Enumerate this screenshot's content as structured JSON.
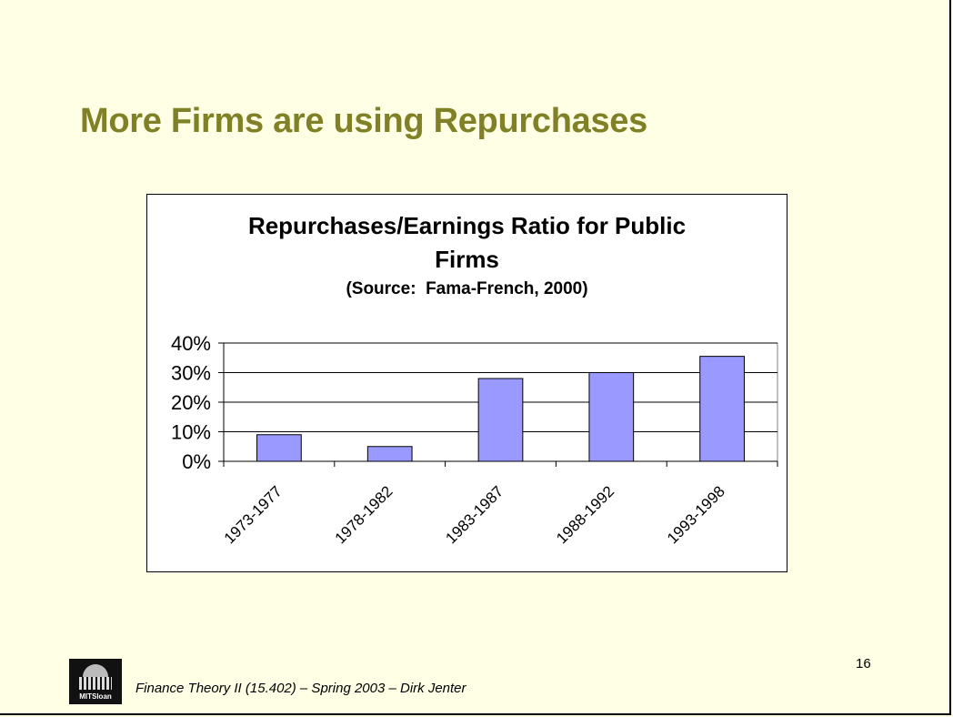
{
  "slide": {
    "title": "More Firms are using Repurchases",
    "footer": "Finance Theory II (15.402) – Spring 2003 – Dirk Jenter",
    "page_number": "16",
    "logo_text": "MITSloan",
    "title_color": "#808026",
    "background_color": "#ffffe6"
  },
  "chart_data": {
    "type": "bar",
    "title_lines": [
      "Repurchases/Earnings Ratio for Public",
      "Firms"
    ],
    "subtitle": "(Source:  Fama-French, 2000)",
    "categories": [
      "1973-1977",
      "1978-1982",
      "1983-1987",
      "1988-1992",
      "1993-1998"
    ],
    "values": [
      9,
      5,
      28,
      30,
      35.5
    ],
    "y_ticks": [
      0,
      10,
      20,
      30,
      40
    ],
    "y_tick_labels": [
      "0%",
      "10%",
      "20%",
      "30%",
      "40%"
    ],
    "ylim": [
      0,
      40
    ],
    "grid": true,
    "legend": false,
    "bar_color": "#9999ff"
  }
}
